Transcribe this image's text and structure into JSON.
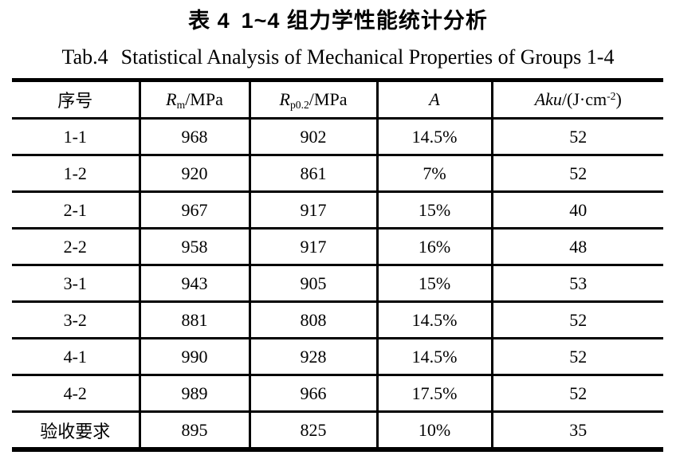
{
  "caption": {
    "zh_label": "表 4",
    "zh_text": "1~4 组力学性能统计分析",
    "en_label": "Tab.4",
    "en_text": "Statistical Analysis of Mechanical Properties of Groups 1-4"
  },
  "table": {
    "headers": [
      {
        "text": "序号"
      },
      {
        "italic": "R",
        "sub": "m",
        "rest": "/MPa"
      },
      {
        "italic": "R",
        "sub": "p0.2",
        "rest": "/MPa"
      },
      {
        "italic": "A"
      },
      {
        "italic": "Aku",
        "rest": "/(J·cm",
        "sup": "-2",
        "tail": ")"
      }
    ],
    "rows": [
      [
        "1-1",
        "968",
        "902",
        "14.5%",
        "52"
      ],
      [
        "1-2",
        "920",
        "861",
        "7%",
        "52"
      ],
      [
        "2-1",
        "967",
        "917",
        "15%",
        "40"
      ],
      [
        "2-2",
        "958",
        "917",
        "16%",
        "48"
      ],
      [
        "3-1",
        "943",
        "905",
        "15%",
        "53"
      ],
      [
        "3-2",
        "881",
        "808",
        "14.5%",
        "52"
      ],
      [
        "4-1",
        "990",
        "928",
        "14.5%",
        "52"
      ],
      [
        "4-2",
        "989",
        "966",
        "17.5%",
        "52"
      ],
      [
        "验收要求",
        "895",
        "825",
        "10%",
        "35"
      ]
    ]
  },
  "colors": {
    "text": "#000000",
    "background": "#ffffff",
    "border": "#000000"
  }
}
